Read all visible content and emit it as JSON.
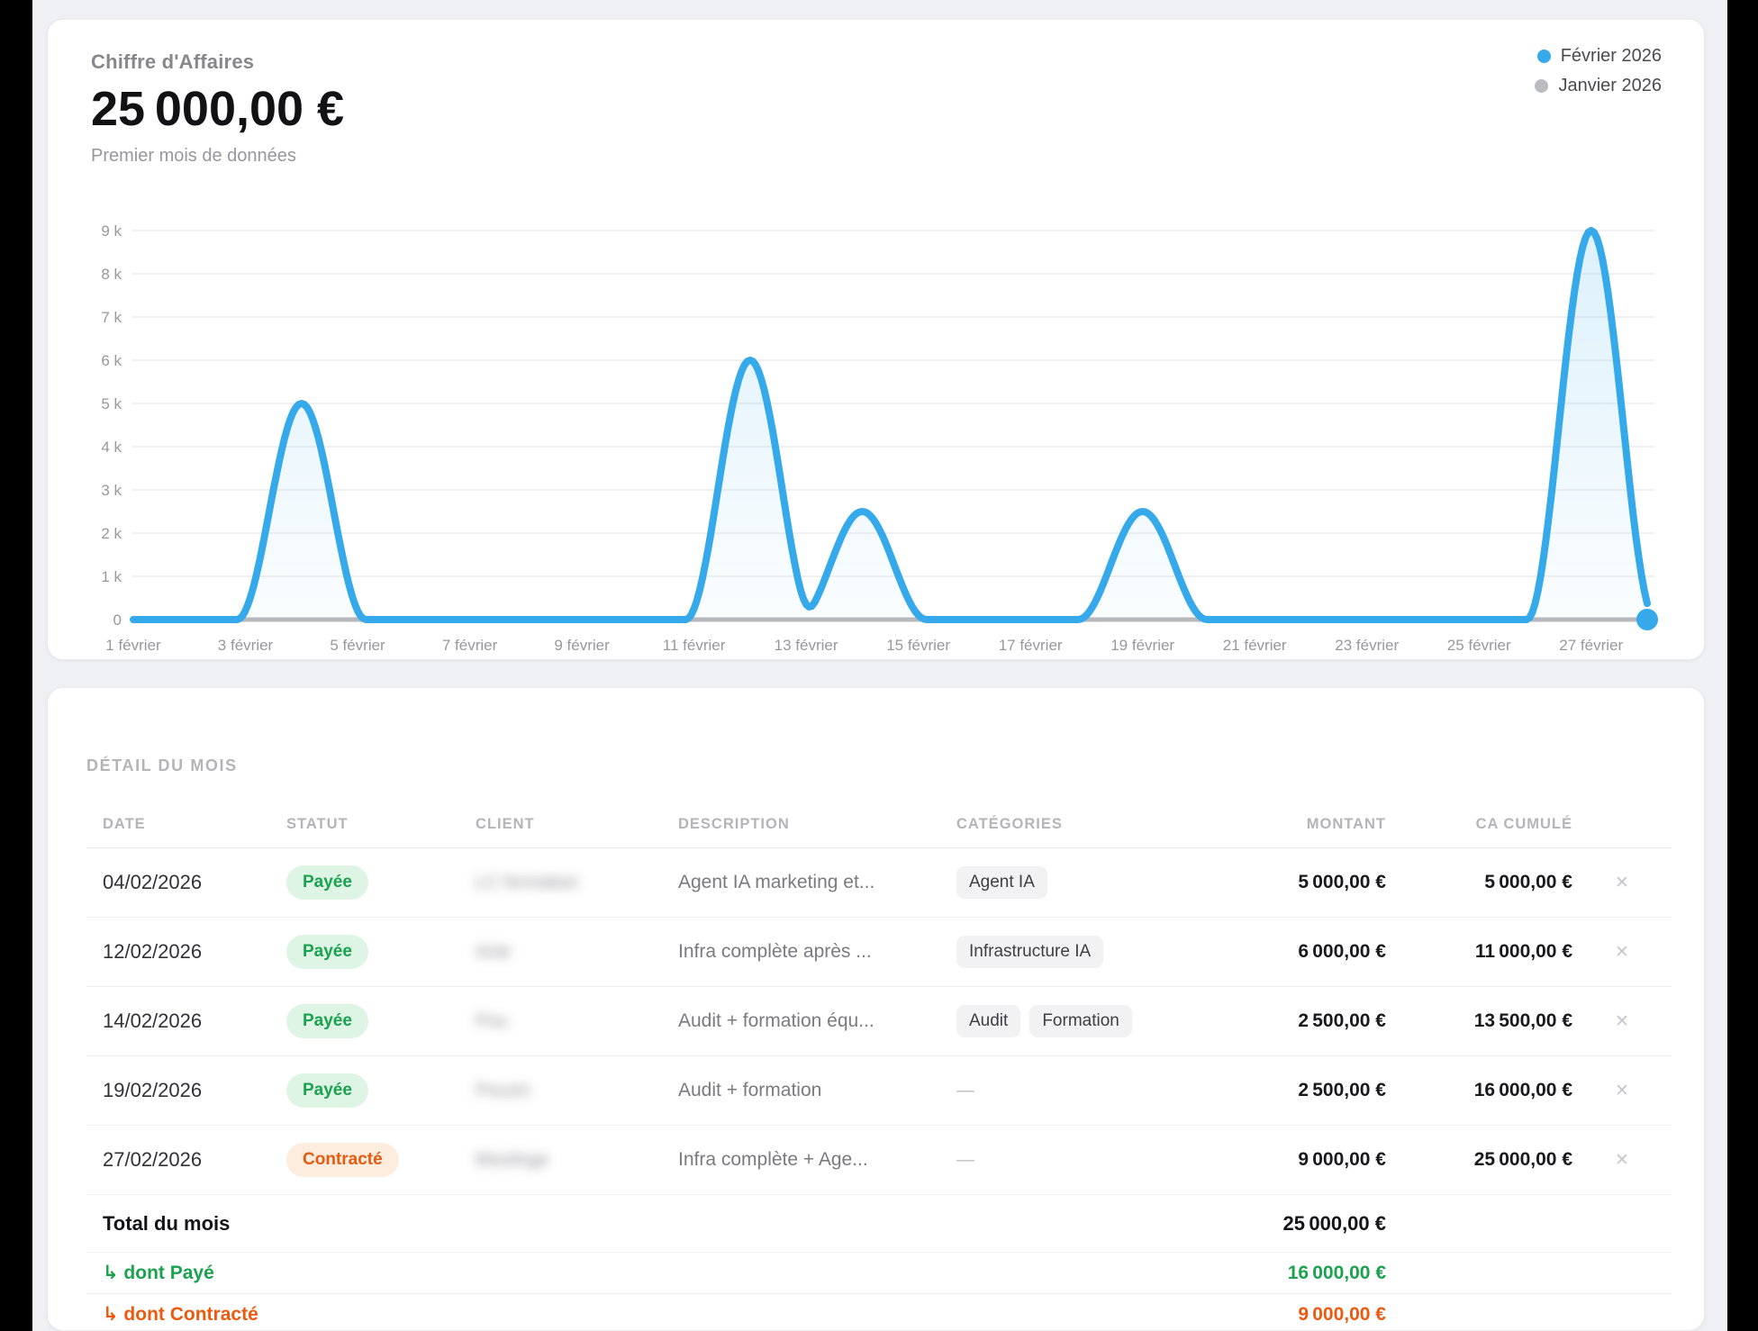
{
  "revenue_card": {
    "title": "Chiffre d'Affaires",
    "value": "25 000,00 €",
    "subtitle": "Premier mois de données",
    "legend": [
      {
        "label": "Février 2026",
        "color": "#35a9ea"
      },
      {
        "label": "Janvier 2026",
        "color": "#b9bcc0"
      }
    ]
  },
  "chart_data": {
    "type": "area",
    "title": "Chiffre d'Affaires — Février 2026",
    "x_unit": "jour de février 2026",
    "x_range": [
      1,
      28
    ],
    "ylim": [
      0,
      9000
    ],
    "grid": "horizontal",
    "legend_position": "top-right",
    "y_ticks": [
      {
        "value": 0,
        "label": "0"
      },
      {
        "value": 1000,
        "label": "1 k"
      },
      {
        "value": 2000,
        "label": "2 k"
      },
      {
        "value": 3000,
        "label": "3 k"
      },
      {
        "value": 4000,
        "label": "4 k"
      },
      {
        "value": 5000,
        "label": "5 k"
      },
      {
        "value": 6000,
        "label": "6 k"
      },
      {
        "value": 7000,
        "label": "7 k"
      },
      {
        "value": 8000,
        "label": "8 k"
      },
      {
        "value": 9000,
        "label": "9 k"
      }
    ],
    "x_ticks": [
      {
        "day": 1,
        "label": "1 février"
      },
      {
        "day": 3,
        "label": "3 février"
      },
      {
        "day": 5,
        "label": "5 février"
      },
      {
        "day": 7,
        "label": "7 février"
      },
      {
        "day": 9,
        "label": "9 février"
      },
      {
        "day": 11,
        "label": "11 février"
      },
      {
        "day": 13,
        "label": "13 février"
      },
      {
        "day": 15,
        "label": "15 février"
      },
      {
        "day": 17,
        "label": "17 février"
      },
      {
        "day": 19,
        "label": "19 février"
      },
      {
        "day": 21,
        "label": "21 février"
      },
      {
        "day": 23,
        "label": "23 février"
      },
      {
        "day": 25,
        "label": "25 février"
      },
      {
        "day": 27,
        "label": "27 février"
      }
    ],
    "series": [
      {
        "name": "Février 2026",
        "color": "#35a9ea",
        "peaks": [
          {
            "day": 4,
            "value": 5000
          },
          {
            "day": 12,
            "value": 6000
          },
          {
            "day": 14,
            "value": 2500
          },
          {
            "day": 19,
            "value": 2500
          },
          {
            "day": 27,
            "value": 9000
          }
        ],
        "baseline": 0,
        "end_dot_day": 28
      },
      {
        "name": "Janvier 2026",
        "color": "#b8b8bc",
        "flat_value": 0
      }
    ]
  },
  "detail_card": {
    "section_title": "DÉTAIL DU MOIS",
    "columns": [
      "DATE",
      "STATUT",
      "CLIENT",
      "DESCRIPTION",
      "CATÉGORIES",
      "MONTANT",
      "CA CUMULÉ"
    ],
    "empty_categories": "—",
    "close_glyph": "✕",
    "rows": [
      {
        "date": "04/02/2026",
        "status": "Payée",
        "status_type": "paid",
        "client": "LC formation",
        "description": "Agent IA marketing et...",
        "categories": [
          "Agent IA"
        ],
        "amount": "5 000,00 €",
        "cumulative": "5 000,00 €"
      },
      {
        "date": "12/02/2026",
        "status": "Payée",
        "status_type": "paid",
        "client": "Acle",
        "description": "Infra complète après ...",
        "categories": [
          "Infrastructure IA"
        ],
        "amount": "6 000,00 €",
        "cumulative": "11 000,00 €"
      },
      {
        "date": "14/02/2026",
        "status": "Payée",
        "status_type": "paid",
        "client": "Pou",
        "description": "Audit + formation équ...",
        "categories": [
          "Audit",
          "Formation"
        ],
        "amount": "2 500,00 €",
        "cumulative": "13 500,00 €"
      },
      {
        "date": "19/02/2026",
        "status": "Payée",
        "status_type": "paid",
        "client": "Pouzin",
        "description": "Audit + formation",
        "categories": [],
        "amount": "2 500,00 €",
        "cumulative": "16 000,00 €"
      },
      {
        "date": "27/02/2026",
        "status": "Contracté",
        "status_type": "contracted",
        "client": "Moulinge",
        "description": "Infra complète + Age...",
        "categories": [],
        "amount": "9 000,00 €",
        "cumulative": "25 000,00 €"
      }
    ],
    "totals": [
      {
        "label": "Total du mois",
        "arrow": "",
        "amount": "25 000,00 €",
        "type": "total"
      },
      {
        "label": "dont Payé",
        "arrow": "↳ ",
        "amount": "16 000,00 €",
        "type": "paid"
      },
      {
        "label": "dont Contracté",
        "arrow": "↳ ",
        "amount": "9 000,00 €",
        "type": "contracted"
      }
    ]
  },
  "colors": {
    "accent_blue": "#35a9ea",
    "green": "#1ba24e",
    "orange": "#eb5a0e",
    "grid": "#ececf0",
    "axis_text": "#98989d"
  }
}
